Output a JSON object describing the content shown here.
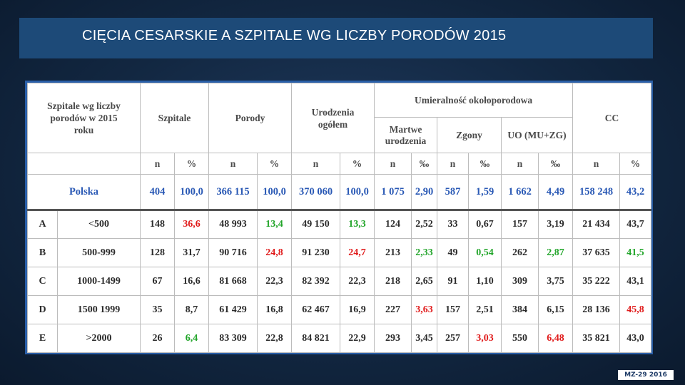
{
  "title": "CIĘCIA CESARSKIE A SZPITALE WG LICZBY PORODÓW  2015",
  "table": {
    "header": {
      "group_col": "Szpitale wg liczby porodów w 2015 roku",
      "szpitale": "Szpitale",
      "porody": "Porody",
      "urodzenia": "Urodzenia ogółem",
      "umieralnosc": "Umieralność okołoporodowa",
      "martwe": "Martwe urodzenia",
      "zgony": "Zgony",
      "uo": "UO (MU+ZG)",
      "cc": "CC"
    },
    "units": [
      "n",
      "%",
      "n",
      "%",
      "n",
      "%",
      "n",
      "‰",
      "n",
      "‰",
      "n",
      "‰",
      "n",
      "%"
    ],
    "poland": {
      "label": "Polska",
      "values": [
        "404",
        "100,0",
        "366 115",
        "100,0",
        "370 060",
        "100,0",
        "1 075",
        "2,90",
        "587",
        "1,59",
        "1 662",
        "4,49",
        "158 248",
        "43,2"
      ]
    },
    "rows": [
      {
        "code": "A",
        "range": "<500",
        "values": [
          "148",
          "36,6",
          "48 993",
          "13,4",
          "49 150",
          "13,3",
          "124",
          "2,52",
          "33",
          "0,67",
          "157",
          "3,19",
          "21 434",
          "43,7"
        ],
        "colors": [
          "",
          "red",
          "",
          "green",
          "",
          "green",
          "",
          "",
          "",
          "",
          "",
          "",
          "",
          ""
        ]
      },
      {
        "code": "B",
        "range": "500-999",
        "values": [
          "128",
          "31,7",
          "90 716",
          "24,8",
          "91 230",
          "24,7",
          "213",
          "2,33",
          "49",
          "0,54",
          "262",
          "2,87",
          "37 635",
          "41,5"
        ],
        "colors": [
          "",
          "",
          "",
          "red",
          "",
          "red",
          "",
          "green",
          "",
          "green",
          "",
          "green",
          "",
          "green"
        ]
      },
      {
        "code": "C",
        "range": "1000-1499",
        "values": [
          "67",
          "16,6",
          "81 668",
          "22,3",
          "82 392",
          "22,3",
          "218",
          "2,65",
          "91",
          "1,10",
          "309",
          "3,75",
          "35 222",
          "43,1"
        ],
        "colors": [
          "",
          "",
          "",
          "",
          "",
          "",
          "",
          "",
          "",
          "",
          "",
          "",
          "",
          ""
        ]
      },
      {
        "code": "D",
        "range": "1500 1999",
        "values": [
          "35",
          "8,7",
          "61 429",
          "16,8",
          "62 467",
          "16,9",
          "227",
          "3,63",
          "157",
          "2,51",
          "384",
          "6,15",
          "28 136",
          "45,8"
        ],
        "colors": [
          "",
          "",
          "",
          "",
          "",
          "",
          "",
          "red",
          "",
          "",
          "",
          "",
          "",
          "red"
        ]
      },
      {
        "code": "E",
        "range": ">2000",
        "values": [
          "26",
          "6,4",
          "83 309",
          "22,8",
          "84 821",
          "22,9",
          "293",
          "3,45",
          "257",
          "3,03",
          "550",
          "6,48",
          "35 821",
          "43,0"
        ],
        "colors": [
          "",
          "green",
          "",
          "",
          "",
          "",
          "",
          "",
          "",
          "red",
          "",
          "red",
          "",
          ""
        ]
      }
    ]
  },
  "footer": "MZ-29 2016",
  "colors": {
    "red": "#e01b1b",
    "green": "#22a52a",
    "poland_blue": "#2a59b5",
    "title_bar": "#1d4a78",
    "frame": "#2a5fa8"
  }
}
